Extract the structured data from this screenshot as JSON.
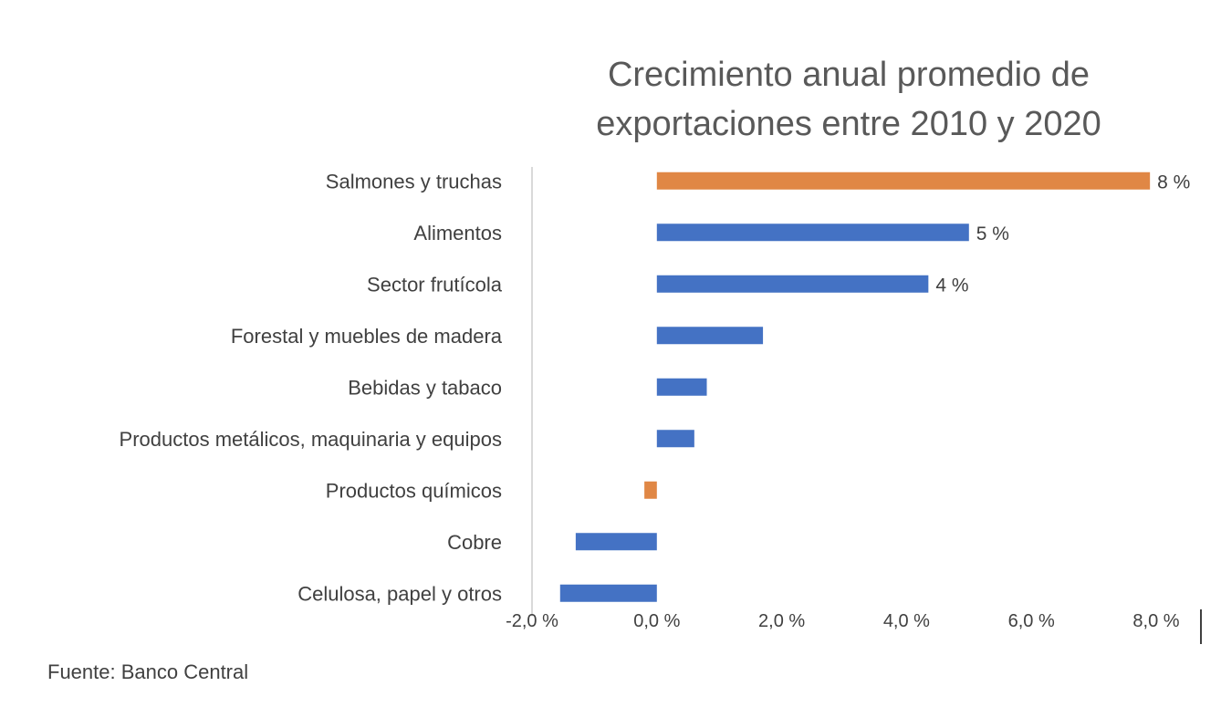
{
  "chart_data": {
    "type": "bar",
    "orientation": "horizontal",
    "title_lines": [
      "Crecimiento anual promedio de",
      "exportaciones entre 2010 y 2020"
    ],
    "categories": [
      "Salmones y truchas",
      "Alimentos",
      "Sector frutícola",
      "Forestal y muebles de madera",
      "Bebidas y tabaco",
      "Productos metálicos, maquinaria y equipos",
      "Productos químicos",
      "Cobre",
      "Celulosa, papel y otros"
    ],
    "values": [
      7.9,
      5.0,
      4.35,
      1.7,
      0.8,
      0.6,
      -0.2,
      -1.3,
      -1.55
    ],
    "data_labels": [
      "8 %",
      "5 %",
      "4 %",
      "",
      "",
      "",
      "",
      "",
      ""
    ],
    "highlighted": [
      "Salmones y truchas",
      "Productos químicos"
    ],
    "xlim": [
      -2.0,
      8.0
    ],
    "xticks": [
      -2.0,
      0.0,
      2.0,
      4.0,
      6.0,
      8.0
    ],
    "xtick_labels": [
      "-2,0 %",
      "0,0 %",
      "2,0 %",
      "4,0 %",
      "6,0 %",
      "8,0 %"
    ],
    "xlabel": "",
    "ylabel": "",
    "grid": false,
    "legend": "none",
    "colors": {
      "default_bar": "#4472c4",
      "highlight_bar": "#e08745",
      "axis_line": "#d9d9d9",
      "text": "#404040",
      "title": "#595959"
    }
  },
  "footer": {
    "source": "Fuente: Banco Central"
  }
}
